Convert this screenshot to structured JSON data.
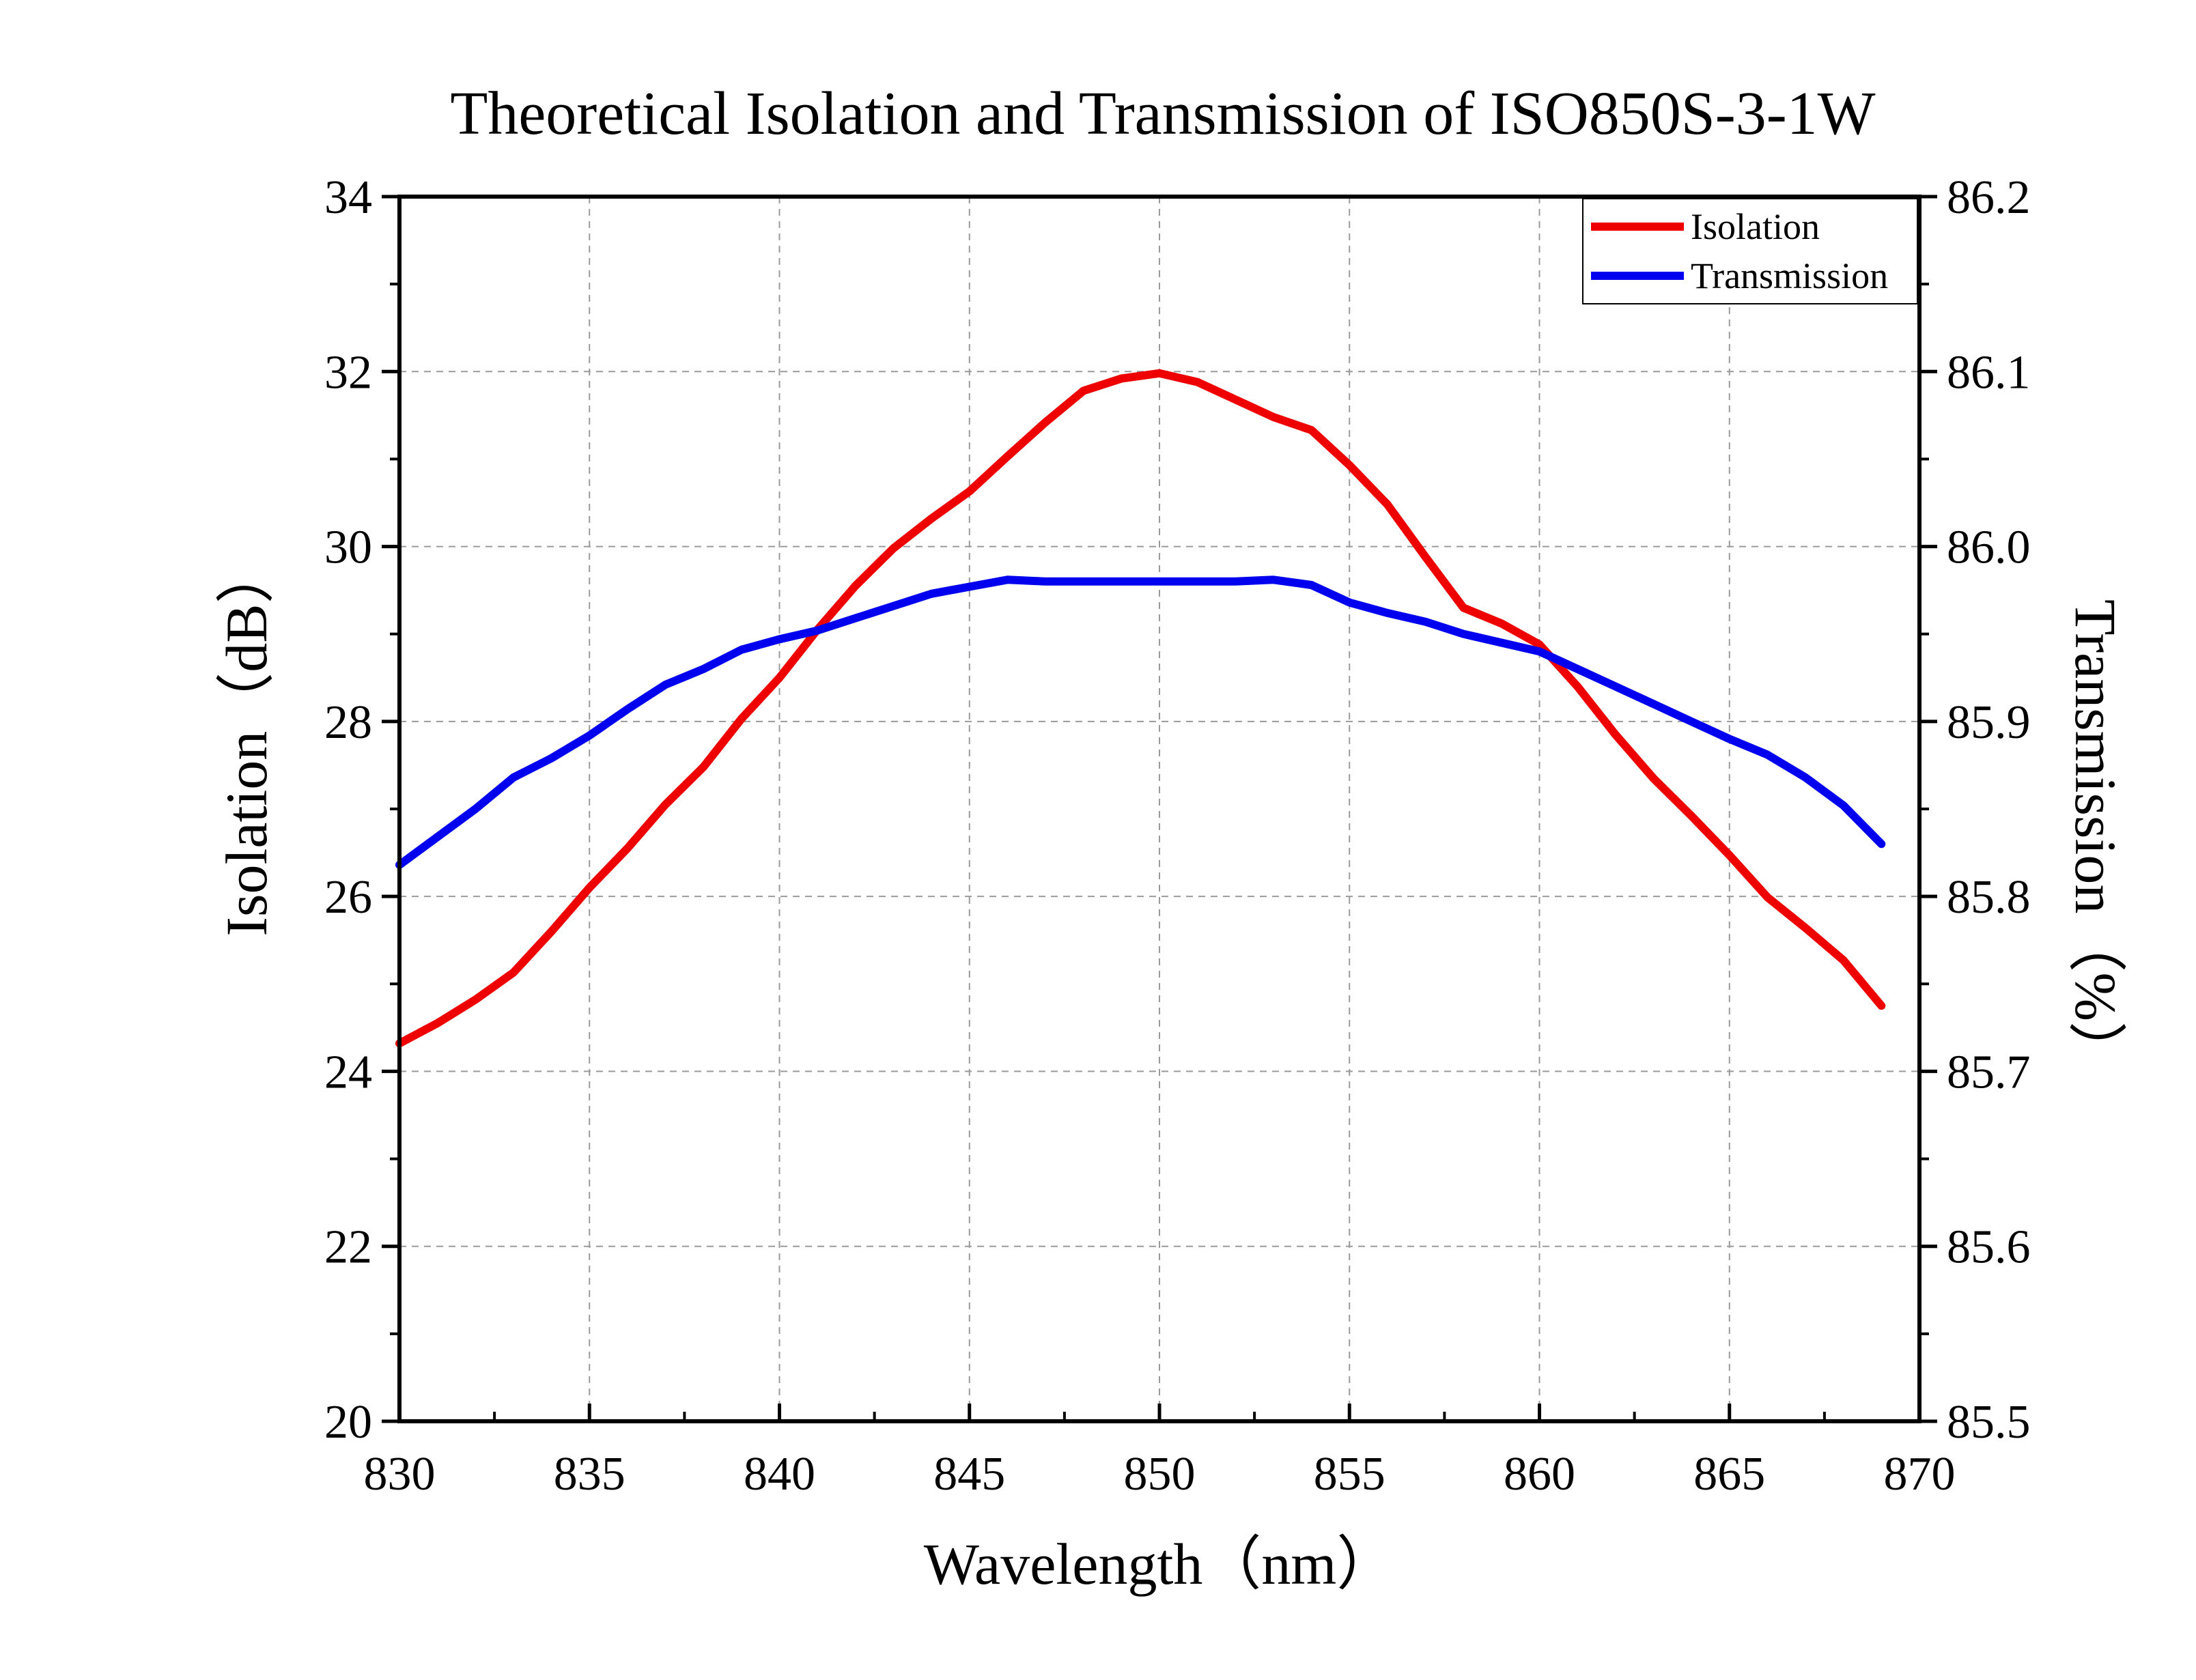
{
  "colors": {
    "isolation": "#ee0000",
    "transmission": "#0000ee",
    "axis": "#000000",
    "grid": "#9a9a9a",
    "background": "#ffffff"
  },
  "chart_data": {
    "type": "line",
    "title": "Theoretical Isolation and Transmission of ISO850S-3-1W",
    "xlabel": "Wavelength（nm）",
    "ylabel_left": "Isolation（dB）",
    "ylabel_right": "Transmission（%）",
    "xlim": [
      830,
      870
    ],
    "ylim_left": [
      20,
      34
    ],
    "ylim_right": [
      85.5,
      86.2
    ],
    "x_ticks": [
      "830",
      "835",
      "840",
      "845",
      "850",
      "855",
      "860",
      "865",
      "870"
    ],
    "y_left_ticks": [
      "20",
      "22",
      "24",
      "26",
      "28",
      "30",
      "32",
      "34"
    ],
    "y_right_ticks": [
      "85.5",
      "85.6",
      "85.7",
      "85.8",
      "85.9",
      "86.0",
      "86.1",
      "86.2"
    ],
    "grid": true,
    "grid_style": "dashed",
    "legend_position": "top-right",
    "series": [
      {
        "name": "Isolation",
        "axis": "left",
        "color": "#ee0000",
        "x": [
          830,
          831,
          832,
          833,
          834,
          835,
          836,
          837,
          838,
          839,
          840,
          841,
          842,
          843,
          844,
          845,
          846,
          847,
          848,
          849,
          850,
          851,
          852,
          853,
          854,
          855,
          856,
          857,
          858,
          859,
          860,
          861,
          862,
          863,
          864,
          865,
          866,
          867,
          868,
          869
        ],
        "y": [
          24.32,
          24.55,
          24.82,
          25.13,
          25.6,
          26.1,
          26.55,
          27.05,
          27.48,
          28.03,
          28.5,
          29.05,
          29.55,
          29.98,
          30.32,
          30.63,
          31.03,
          31.42,
          31.78,
          31.92,
          31.98,
          31.88,
          31.68,
          31.48,
          31.33,
          30.93,
          30.48,
          29.88,
          29.3,
          29.12,
          28.88,
          28.4,
          27.85,
          27.35,
          26.92,
          26.47,
          25.99,
          25.64,
          25.27,
          24.75
        ]
      },
      {
        "name": "Transmission",
        "axis": "right",
        "color": "#0000ee",
        "x": [
          830,
          831,
          832,
          833,
          834,
          835,
          836,
          837,
          838,
          839,
          840,
          841,
          842,
          843,
          844,
          845,
          846,
          847,
          848,
          849,
          850,
          851,
          852,
          853,
          854,
          855,
          856,
          857,
          858,
          859,
          860,
          861,
          862,
          863,
          864,
          865,
          866,
          867,
          868,
          869
        ],
        "y": [
          85.818,
          85.834,
          85.85,
          85.868,
          85.879,
          85.892,
          85.907,
          85.921,
          85.93,
          85.941,
          85.947,
          85.952,
          85.959,
          85.966,
          85.973,
          85.977,
          85.981,
          85.98,
          85.98,
          85.98,
          85.98,
          85.98,
          85.98,
          85.981,
          85.978,
          85.968,
          85.962,
          85.957,
          85.95,
          85.945,
          85.94,
          85.93,
          85.92,
          85.91,
          85.9,
          85.89,
          85.881,
          85.868,
          85.852,
          85.83
        ]
      }
    ]
  }
}
